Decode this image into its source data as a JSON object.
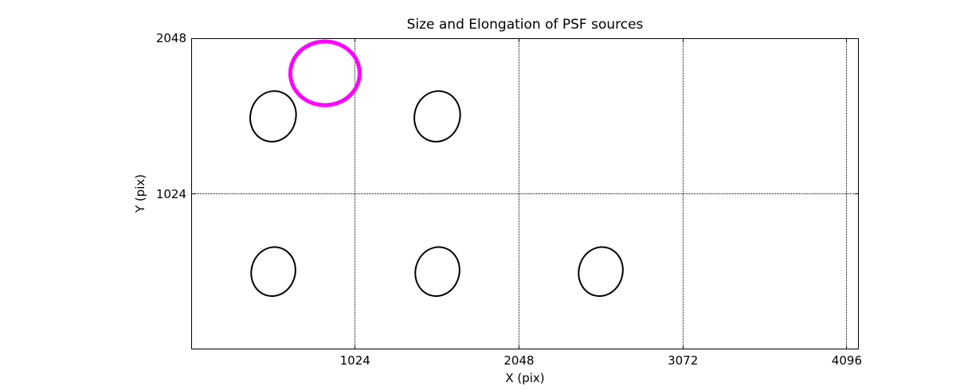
{
  "chart": {
    "title": "Size and Elongation of PSF sources",
    "xlabel": "X (pix)",
    "ylabel": "Y (pix)"
  },
  "colors": {
    "foreground": "#000000",
    "background": "#ffffff",
    "highlight": "#ff00ff"
  },
  "chart_data": {
    "type": "scatter",
    "marker": "ellipse",
    "title": "Size and Elongation of PSF sources",
    "xlabel": "X (pix)",
    "ylabel": "Y (pix)",
    "xlim": [
      0,
      4171
    ],
    "ylim": [
      0,
      2048
    ],
    "xticks": [
      1024,
      2048,
      3072,
      4096
    ],
    "yticks": [
      1024,
      2048
    ],
    "grid": {
      "style": "dotted",
      "x_values": [
        1024,
        2048,
        3072,
        4096
      ],
      "y_values": [
        1024
      ]
    },
    "ellipses": [
      {
        "x": 512,
        "y": 1536,
        "rx": 141,
        "ry": 165,
        "tilt_deg_clockwise": 15,
        "color": "#000000",
        "stroke_px": 2.5,
        "highlight": false
      },
      {
        "x": 1536,
        "y": 1536,
        "rx": 141,
        "ry": 165,
        "tilt_deg_clockwise": 15,
        "color": "#000000",
        "stroke_px": 2.5,
        "highlight": false
      },
      {
        "x": 512,
        "y": 512,
        "rx": 135,
        "ry": 160,
        "tilt_deg_clockwise": 15,
        "color": "#000000",
        "stroke_px": 2.5,
        "highlight": false
      },
      {
        "x": 1536,
        "y": 512,
        "rx": 135,
        "ry": 160,
        "tilt_deg_clockwise": 15,
        "color": "#000000",
        "stroke_px": 2.5,
        "highlight": false
      },
      {
        "x": 2560,
        "y": 512,
        "rx": 135,
        "ry": 160,
        "tilt_deg_clockwise": 15,
        "color": "#000000",
        "stroke_px": 2.5,
        "highlight": false
      },
      {
        "x": 835,
        "y": 1815,
        "rx": 217,
        "ry": 209,
        "tilt_deg_clockwise": 0,
        "color": "#ff00ff",
        "stroke_px": 5,
        "highlight": true
      }
    ]
  }
}
